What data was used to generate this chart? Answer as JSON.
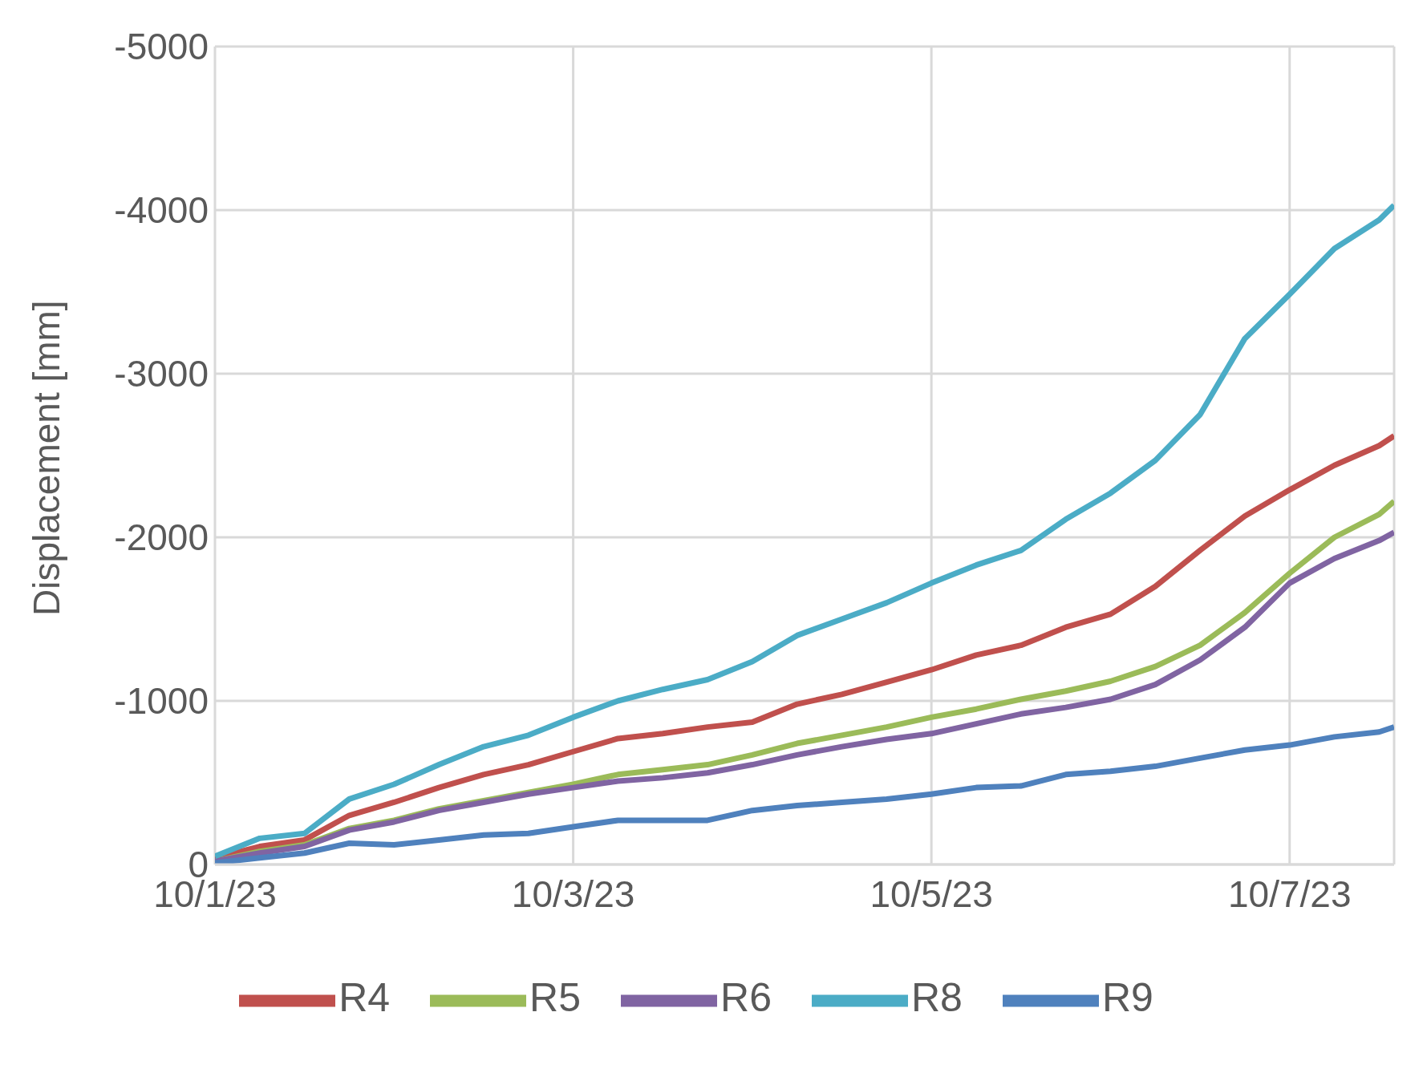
{
  "chart_data": {
    "type": "line",
    "ylabel": "Displacement [mm]",
    "x": [
      "--10-01T00:00",
      "--10-01T06:00",
      "--10-01T12:00",
      "--10-01T18:00",
      "--10-02T00:00",
      "--10-02T06:00",
      "--10-02T12:00",
      "--10-02T18:00",
      "--10-03T00:00",
      "--10-03T06:00",
      "--10-03T12:00",
      "--10-03T18:00",
      "--10-04T00:00",
      "--10-04T06:00",
      "--10-04T12:00",
      "--10-04T18:00",
      "--10-05T00:00",
      "--10-05T06:00",
      "--10-05T12:00",
      "--10-05T18:00",
      "--10-06T00:00",
      "--10-06T06:00",
      "--10-06T12:00",
      "--10-06T18:00",
      "--10-07T00:00",
      "--10-07T06:00",
      "--10-07T12:00",
      "--10-07T14:00"
    ],
    "series": [
      {
        "name": "R4",
        "color": "#c0504d",
        "values": [
          -40,
          -110,
          -150,
          -300,
          -380,
          -470,
          -550,
          -610,
          -690,
          -770,
          -800,
          -840,
          -870,
          -980,
          -1040,
          -1115,
          -1190,
          -1280,
          -1340,
          -1450,
          -1530,
          -1700,
          -1920,
          -2130,
          -2290,
          -2440,
          -2560,
          -2620
        ]
      },
      {
        "name": "R5",
        "color": "#9bbb59",
        "values": [
          -20,
          -80,
          -120,
          -220,
          -270,
          -340,
          -390,
          -440,
          -490,
          -550,
          -580,
          -610,
          -670,
          -740,
          -790,
          -840,
          -900,
          -950,
          -1010,
          -1060,
          -1120,
          -1210,
          -1340,
          -1540,
          -1780,
          -2000,
          -2140,
          -2220
        ]
      },
      {
        "name": "R6",
        "color": "#8064a2",
        "values": [
          -20,
          -70,
          -110,
          -210,
          -260,
          -330,
          -380,
          -430,
          -470,
          -510,
          -530,
          -560,
          -610,
          -670,
          -720,
          -765,
          -800,
          -860,
          -920,
          -960,
          -1010,
          -1100,
          -1250,
          -1450,
          -1720,
          -1870,
          -1980,
          -2030
        ]
      },
      {
        "name": "R8",
        "color": "#4bacc6",
        "values": [
          -50,
          -160,
          -190,
          -400,
          -490,
          -610,
          -720,
          -790,
          -900,
          -1000,
          -1070,
          -1130,
          -1240,
          -1400,
          -1500,
          -1600,
          -1720,
          -1830,
          -1920,
          -2110,
          -2270,
          -2470,
          -2750,
          -3215,
          -3485,
          -3765,
          -3940,
          -4030
        ]
      },
      {
        "name": "R9",
        "color": "#4f81bd",
        "values": [
          -10,
          -40,
          -70,
          -130,
          -120,
          -150,
          -180,
          -190,
          -230,
          -270,
          -270,
          -270,
          -330,
          -360,
          -380,
          -400,
          -430,
          -470,
          -480,
          -550,
          -570,
          -600,
          -650,
          -700,
          -730,
          -780,
          -810,
          -840
        ]
      }
    ],
    "xlim": [
      "--10-01T00:00",
      "--10-07T14:00"
    ],
    "xticks": [
      {
        "value": "--10-01",
        "label": "10/1/23"
      },
      {
        "value": "--10-03",
        "label": "10/3/23"
      },
      {
        "value": "--10-05",
        "label": "10/5/23"
      },
      {
        "value": "--10-07",
        "label": "10/7/23"
      }
    ],
    "ylim": [
      0,
      -5000
    ],
    "yticks": [
      0,
      -1000,
      -2000,
      -3000,
      -4000,
      -5000
    ],
    "grid": true,
    "legend": "bottom",
    "line_style": "solid",
    "marker": "none"
  }
}
